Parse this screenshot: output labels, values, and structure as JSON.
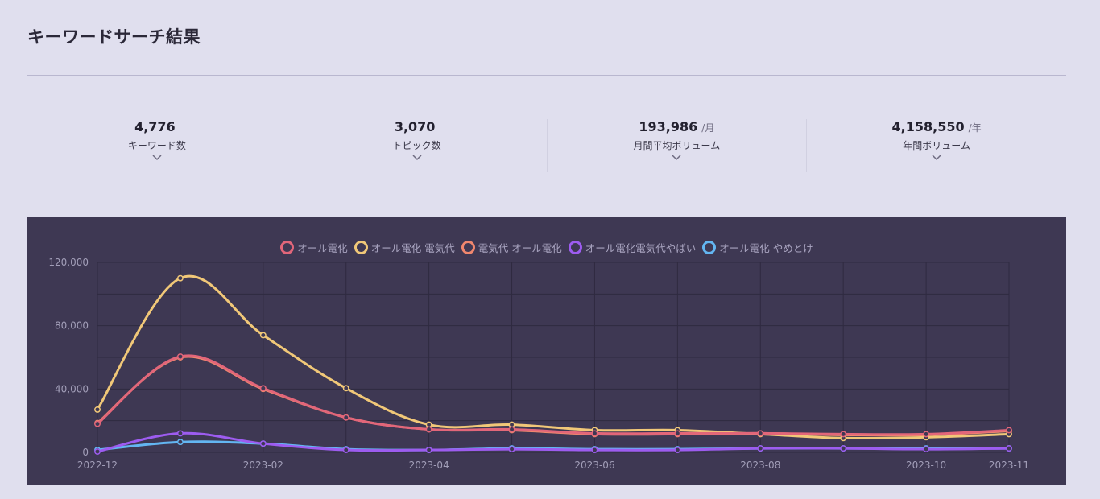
{
  "page": {
    "title": "キーワードサーチ結果"
  },
  "stats": [
    {
      "value": "4,776",
      "unit": "",
      "label": "キーワード数"
    },
    {
      "value": "3,070",
      "unit": "",
      "label": "トピック数"
    },
    {
      "value": "193,986",
      "unit": "/月",
      "label": "月間平均ボリューム"
    },
    {
      "value": "4,158,550",
      "unit": "/年",
      "label": "年間ボリューム"
    }
  ],
  "chart_data": {
    "type": "line",
    "title": "",
    "xlabel": "",
    "ylabel": "",
    "x": [
      "2022-12",
      "2023-01",
      "2023-02",
      "2023-03",
      "2023-04",
      "2023-05",
      "2023-06",
      "2023-07",
      "2023-08",
      "2023-09",
      "2023-10",
      "2023-11"
    ],
    "x_tick_labels": [
      "2022-12",
      "",
      "2023-02",
      "",
      "2023-04",
      "",
      "2023-06",
      "",
      "2023-08",
      "",
      "2023-10",
      "2023-11"
    ],
    "ylim": [
      0,
      120000
    ],
    "y_ticks": [
      0,
      40000,
      80000,
      120000
    ],
    "y_tick_labels": [
      "0",
      "40,000",
      "80,000",
      "120,000"
    ],
    "grid": true,
    "legend_position": "top-center",
    "series": [
      {
        "name": "オール電化",
        "color": "#e2667a",
        "values": [
          18000,
          60500,
          40500,
          22000,
          14500,
          14500,
          12000,
          12000,
          12000,
          11500,
          11500,
          14000
        ]
      },
      {
        "name": "オール電化 電気代",
        "color": "#f1c878",
        "values": [
          27000,
          110000,
          74000,
          40500,
          17500,
          17500,
          14000,
          14000,
          11500,
          9000,
          9500,
          11500
        ]
      },
      {
        "name": "電気代 オール電化",
        "color": "#f0876e",
        "values": [
          18500,
          60000,
          40000,
          22000,
          14500,
          14000,
          11500,
          11500,
          12000,
          11000,
          11000,
          13500
        ]
      },
      {
        "name": "オール電化電気代やばい",
        "color": "#9d5cf0",
        "values": [
          500,
          12000,
          5500,
          1500,
          1500,
          2000,
          1500,
          1500,
          2500,
          2500,
          2000,
          2500
        ]
      },
      {
        "name": "オール電化 やめとけ",
        "color": "#63b6f2",
        "values": [
          1500,
          6500,
          5500,
          2000,
          1500,
          2500,
          2000,
          2000,
          2500,
          2500,
          2500,
          2500
        ]
      }
    ]
  }
}
